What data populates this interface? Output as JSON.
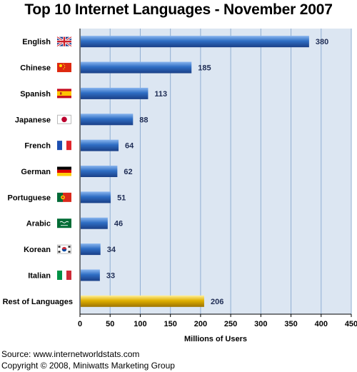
{
  "chart_data": {
    "type": "bar",
    "orientation": "horizontal",
    "title": "Top 10 Internet Languages - November 2007",
    "xlabel": "Millions of Users",
    "ylabel": "",
    "xlim": [
      0,
      450
    ],
    "x_ticks": [
      0,
      50,
      100,
      150,
      200,
      250,
      300,
      350,
      400,
      450
    ],
    "grid": true,
    "categories": [
      "English",
      "Chinese",
      "Spanish",
      "Japanese",
      "French",
      "German",
      "Portuguese",
      "Arabic",
      "Korean",
      "Italian",
      "Rest of Languages"
    ],
    "values": [
      380,
      185,
      113,
      88,
      64,
      62,
      51,
      46,
      34,
      33,
      206
    ],
    "flags": [
      "uk-flag-icon",
      "china-flag-icon",
      "spain-flag-icon",
      "japan-flag-icon",
      "france-flag-icon",
      "germany-flag-icon",
      "portugal-flag-icon",
      "saudi-arabia-flag-icon",
      "korea-flag-icon",
      "italy-flag-icon",
      ""
    ],
    "colors": {
      "bar": "#2f6ec4",
      "highlight_bar": "#e0b000",
      "plot_bg": "#dce6f2",
      "grid": "#8faed3",
      "value_label": "#1f2d55"
    }
  },
  "footer": {
    "source": "Source: www.internetworldstats.com",
    "copyright": "Copyright © 2008, Miniwatts Marketing Group"
  }
}
